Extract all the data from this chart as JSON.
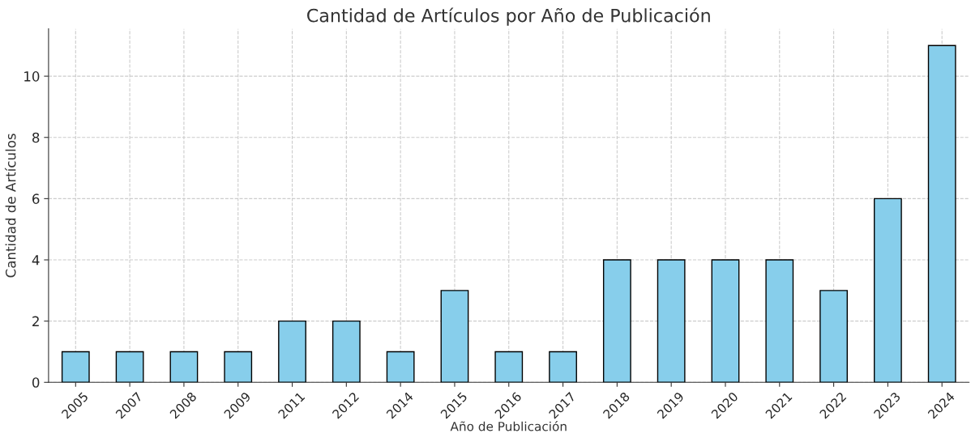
{
  "chart_data": {
    "type": "bar",
    "title": "Cantidad de Artículos por Año de Publicación",
    "xlabel": "Año de Publicación",
    "ylabel": "Cantidad de Artículos",
    "categories": [
      "2005",
      "2007",
      "2008",
      "2009",
      "2011",
      "2012",
      "2014",
      "2015",
      "2016",
      "2017",
      "2018",
      "2019",
      "2020",
      "2021",
      "2022",
      "2023",
      "2024"
    ],
    "values": [
      1,
      1,
      1,
      1,
      2,
      2,
      1,
      3,
      1,
      1,
      4,
      4,
      4,
      4,
      3,
      6,
      11
    ],
    "color": "#87ceeb",
    "ylim": [
      0,
      11.55
    ],
    "yticks": [
      0,
      2,
      4,
      6,
      8,
      10
    ],
    "grid": true
  }
}
